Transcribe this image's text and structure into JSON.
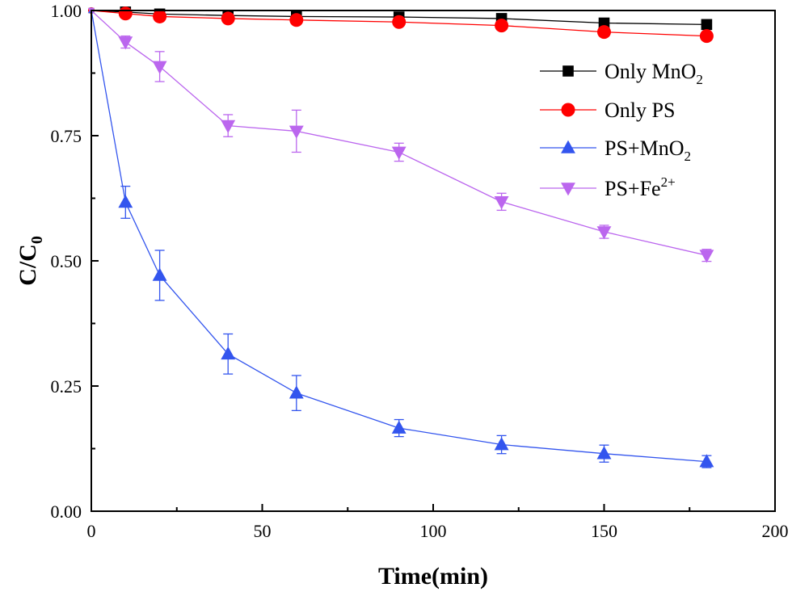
{
  "chart_data": {
    "type": "line",
    "title": "",
    "xlabel": "Time(min)",
    "ylabel_main": "C/C",
    "ylabel_sub": "0",
    "xlim": [
      0,
      200
    ],
    "ylim": [
      0.0,
      1.0
    ],
    "x_ticks": [
      0,
      50,
      100,
      150,
      200
    ],
    "x_tick_labels": [
      "0",
      "50",
      "100",
      "150",
      "200"
    ],
    "y_ticks": [
      0.0,
      0.25,
      0.5,
      0.75,
      1.0
    ],
    "y_tick_labels": [
      "0.00",
      "0.25",
      "0.50",
      "0.75",
      "1.00"
    ],
    "legend_position": "right, upper-middle",
    "x": [
      0,
      10,
      20,
      40,
      60,
      90,
      120,
      150,
      180
    ],
    "series": [
      {
        "name": "Only MnO2",
        "label_main": "Only MnO",
        "label_sup": "",
        "label_sub": "2",
        "marker": "square",
        "color": "#000000",
        "values": [
          1.0,
          0.997,
          0.993,
          0.99,
          0.988,
          0.987,
          0.984,
          0.975,
          0.972
        ],
        "errors": [
          0,
          0,
          0,
          0,
          0,
          0,
          0,
          0,
          0
        ]
      },
      {
        "name": "Only PS",
        "label_main": "Only PS",
        "label_sup": "",
        "label_sub": "",
        "marker": "circle",
        "color": "#ff0000",
        "values": [
          1.0,
          0.994,
          0.988,
          0.984,
          0.981,
          0.977,
          0.97,
          0.957,
          0.949
        ],
        "errors": [
          0,
          0,
          0,
          0,
          0,
          0,
          0,
          0,
          0
        ]
      },
      {
        "name": "PS+MnO2",
        "label_main": "PS+MnO",
        "label_sup": "",
        "label_sub": "2",
        "marker": "triangle-up",
        "color": "#3355ee",
        "values": [
          1.0,
          0.617,
          0.471,
          0.314,
          0.236,
          0.166,
          0.133,
          0.115,
          0.099
        ],
        "errors": [
          0,
          0.032,
          0.05,
          0.04,
          0.035,
          0.017,
          0.018,
          0.017,
          0.012
        ]
      },
      {
        "name": "PS+Fe2+",
        "label_main": "PS+Fe",
        "label_sup": "2+",
        "label_sub": "",
        "marker": "triangle-down",
        "color": "#bb66ee",
        "values": [
          1.0,
          0.937,
          0.888,
          0.77,
          0.759,
          0.717,
          0.618,
          0.558,
          0.511
        ],
        "errors": [
          0,
          0.012,
          0.03,
          0.022,
          0.042,
          0.018,
          0.017,
          0.013,
          0.012
        ]
      }
    ]
  }
}
